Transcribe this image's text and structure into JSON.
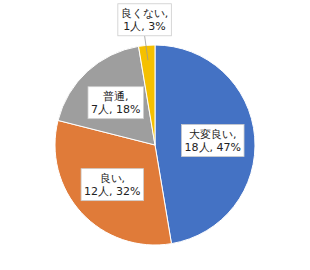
{
  "chart_data": {
    "type": "pie",
    "values": [
      18,
      12,
      7,
      1
    ],
    "value_labels": [
      "大変良い,\n18人, 47%",
      "良い,\n12人, 32%",
      "普通,\n7人, 18%",
      "良くない,\n1人, 3%"
    ],
    "colors": [
      "#4472C4",
      "#E07B39",
      "#9E9E9E",
      "#F5C000"
    ],
    "data_labels": true
  }
}
